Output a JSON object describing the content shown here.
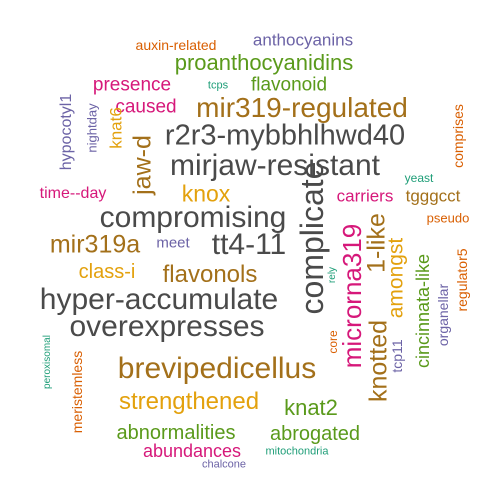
{
  "colors": {
    "gray": "#4a4a4a",
    "brown": "#a3701a",
    "green": "#5a9a1b",
    "orange": "#e3a10d",
    "magenta": "#d6187a",
    "purple": "#6c63a6",
    "teal": "#1f9e78",
    "red": "#d95f02"
  },
  "words": {
    "w1": "auxin-related",
    "w2": "anthocyanins",
    "w3": "proanthocyanidins",
    "w4": "tcps",
    "w5": "flavonoid",
    "w6": "hypocotyl1",
    "w7": "presence",
    "w8": "nightday",
    "w9": "mir319-regulated",
    "w10": "comprises",
    "w11": "caused",
    "w12": "knat6",
    "w13": "r2r3-mybbhlhwd40",
    "w14": "jaw-d",
    "w15": "mirjaw-resistant",
    "w16": "yeast",
    "w17": "time--day",
    "w18": "knox",
    "w19": "carriers",
    "w20": "tgggcct",
    "w21": "compromising",
    "w22": "complicate",
    "w23": "pseudo",
    "w24": "mir319a",
    "w25": "meet",
    "w26": "tt4-11",
    "w27": "microrna319",
    "w28": "1-like",
    "w29": "regulator5",
    "w30": "class-i",
    "w31": "rely",
    "w32": "flavonols",
    "w33": "amongst",
    "w34": "cincinnata-like",
    "w35": "hyper-accumulate",
    "w36": "organellar",
    "w37": "knotted",
    "w38": "overexpresses",
    "w39": "peroxisomal",
    "w40": "core",
    "w41": "tcp11",
    "w42": "meristemless",
    "w43": "brevipedicellus",
    "w44": "strengthened",
    "w45": "knat2",
    "w46": "abnormalities",
    "w47": "abrogated",
    "w48": "abundances",
    "w49": "chalcone",
    "w50": "mitochondria"
  }
}
